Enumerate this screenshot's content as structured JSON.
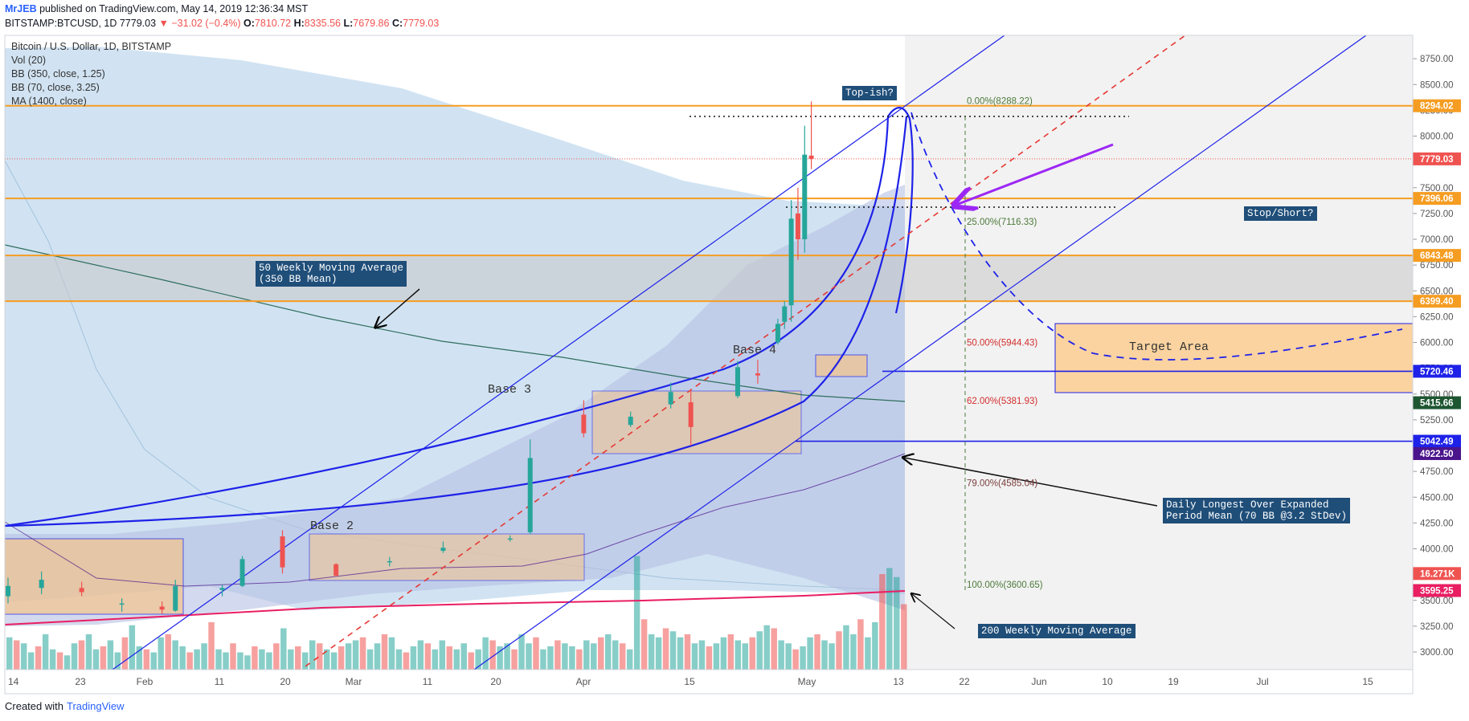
{
  "header": {
    "author": "MrJEB",
    "published_text": "published on TradingView.com, May 14, 2019 12:36:34 MST"
  },
  "symbol_bar": {
    "symbol": "BITSTAMP:BTCUSD, 1D",
    "last": "7779.03",
    "change": "▼ −31.02 (−0.4%)",
    "o_label": "O:",
    "o": "7810.72",
    "h_label": "H:",
    "h": "8335.56",
    "l_label": "L:",
    "l": "7679.86",
    "c_label": "C:",
    "c": "7779.03"
  },
  "legend": {
    "title": "Bitcoin / U.S. Dollar, 1D, BITSTAMP",
    "indicators": [
      "Vol (20)",
      "BB (350, close, 1.25)",
      "BB (70, close, 3.25)",
      "MA (1400, close)"
    ]
  },
  "annotations": {
    "top_ish": "Top-ish?",
    "stop_short": "Stop/Short?",
    "ma50": "50 Weekly Moving Average\n(350 BB Mean)",
    "base2": "Base 2",
    "base3": "Base 3",
    "base4": "Base 4",
    "target_area": "Target Area",
    "daily_longest": "Daily Longest Over Expanded\nPeriod Mean (70 BB @3.2 StDev)",
    "ma200": "200 Weekly Moving Average"
  },
  "fib_levels": [
    {
      "label": "0.00%(8288.22)",
      "price": 8288.22,
      "color": "#4c7a3a"
    },
    {
      "label": "25.00%(7116.33)",
      "price": 7116.33,
      "color": "#4c7a3a"
    },
    {
      "label": "50.00%(5944.43)",
      "price": 5944.43,
      "color": "#d32f2f"
    },
    {
      "label": "62.00%(5381.93)",
      "price": 5381.93,
      "color": "#d32f2f"
    },
    {
      "label": "79.00%(4585.04)",
      "price": 4585.04,
      "color": "#7b3f3f"
    },
    {
      "label": "100.00%(3600.65)",
      "price": 3600.65,
      "color": "#4c7a3a"
    }
  ],
  "price_tags": [
    {
      "value": "8294.02",
      "price": 8294.02,
      "color": "#f59d22"
    },
    {
      "value": "7779.03",
      "price": 7779.03,
      "color": "#ef5350"
    },
    {
      "value": "7396.06",
      "price": 7396.06,
      "color": "#f59d22"
    },
    {
      "value": "6843.48",
      "price": 6843.48,
      "color": "#f59d22"
    },
    {
      "value": "6399.40",
      "price": 6399.4,
      "color": "#f59d22"
    },
    {
      "value": "5720.46",
      "price": 5720.46,
      "color": "#1e22e8"
    },
    {
      "value": "5415.66",
      "price": 5415.66,
      "color": "#1e5631"
    },
    {
      "value": "5042.49",
      "price": 5042.49,
      "color": "#1e22e8"
    },
    {
      "value": "4922.50",
      "price": 4922.5,
      "color": "#4a148c"
    },
    {
      "value": "16.271K",
      "price": 3760,
      "color": "#ef5350"
    },
    {
      "value": "3595.25",
      "price": 3595.25,
      "color": "#e91e63"
    }
  ],
  "colors": {
    "up": "#26a69a",
    "down": "#ef5350",
    "orange": "#f59d22",
    "blue_line": "#1e22e8",
    "bb_fill": "#c9def0",
    "purple_arrow": "#9c27f5"
  },
  "chart_data": {
    "type": "candlestick",
    "title": "Bitcoin / U.S. Dollar, 1D, BITSTAMP",
    "xlabel": "",
    "ylabel": "",
    "ylim": [
      2700,
      8900
    ],
    "y_ticks": [
      3000,
      3250,
      3500,
      3750,
      4000,
      4250,
      4500,
      4750,
      5000,
      5250,
      5500,
      5750,
      6000,
      6250,
      6500,
      6750,
      7000,
      7250,
      7500,
      7750,
      8000,
      8250,
      8500,
      8750
    ],
    "x_tick_labels": [
      "14",
      "23",
      "Feb",
      "11",
      "20",
      "Mar",
      "11",
      "20",
      "Apr",
      "15",
      "May",
      "13",
      "22",
      "Jun",
      "10",
      "19",
      "Jul",
      "15"
    ],
    "grid": false,
    "candles": [
      {
        "date": "2019-01-14",
        "o": 3540,
        "h": 3720,
        "l": 3470,
        "c": 3640
      },
      {
        "date": "2019-01-19",
        "o": 3620,
        "h": 3780,
        "l": 3560,
        "c": 3700
      },
      {
        "date": "2019-01-25",
        "o": 3620,
        "h": 3680,
        "l": 3540,
        "c": 3580
      },
      {
        "date": "2019-01-31",
        "o": 3460,
        "h": 3520,
        "l": 3390,
        "c": 3470
      },
      {
        "date": "2019-02-06",
        "o": 3440,
        "h": 3490,
        "l": 3370,
        "c": 3410
      },
      {
        "date": "2019-02-08",
        "o": 3400,
        "h": 3700,
        "l": 3390,
        "c": 3640
      },
      {
        "date": "2019-02-15",
        "o": 3600,
        "h": 3650,
        "l": 3540,
        "c": 3620
      },
      {
        "date": "2019-02-18",
        "o": 3640,
        "h": 3930,
        "l": 3630,
        "c": 3900
      },
      {
        "date": "2019-02-24",
        "o": 4120,
        "h": 4180,
        "l": 3760,
        "c": 3820
      },
      {
        "date": "2019-03-04",
        "o": 3850,
        "h": 3860,
        "l": 3730,
        "c": 3740
      },
      {
        "date": "2019-03-12",
        "o": 3870,
        "h": 3920,
        "l": 3830,
        "c": 3880
      },
      {
        "date": "2019-03-20",
        "o": 3980,
        "h": 4070,
        "l": 3960,
        "c": 4010
      },
      {
        "date": "2019-03-30",
        "o": 4090,
        "h": 4130,
        "l": 4070,
        "c": 4100
      },
      {
        "date": "2019-04-02",
        "o": 4160,
        "h": 5060,
        "l": 4140,
        "c": 4880
      },
      {
        "date": "2019-04-10",
        "o": 5300,
        "h": 5440,
        "l": 5080,
        "c": 5120
      },
      {
        "date": "2019-04-17",
        "o": 5200,
        "h": 5330,
        "l": 5180,
        "c": 5280
      },
      {
        "date": "2019-04-23",
        "o": 5400,
        "h": 5610,
        "l": 5360,
        "c": 5520
      },
      {
        "date": "2019-04-26",
        "o": 5420,
        "h": 5550,
        "l": 5000,
        "c": 5180
      },
      {
        "date": "2019-05-03",
        "o": 5480,
        "h": 5820,
        "l": 5460,
        "c": 5760
      },
      {
        "date": "2019-05-06",
        "o": 5700,
        "h": 5830,
        "l": 5600,
        "c": 5680
      },
      {
        "date": "2019-05-09",
        "o": 6000,
        "h": 6230,
        "l": 5980,
        "c": 6180
      },
      {
        "date": "2019-05-10",
        "o": 6200,
        "h": 6400,
        "l": 6130,
        "c": 6350
      },
      {
        "date": "2019-05-11",
        "o": 6360,
        "h": 7380,
        "l": 6200,
        "c": 7200
      },
      {
        "date": "2019-05-12",
        "o": 7250,
        "h": 7500,
        "l": 6800,
        "c": 7000
      },
      {
        "date": "2019-05-13",
        "o": 7000,
        "h": 8100,
        "l": 6870,
        "c": 7820
      },
      {
        "date": "2019-05-14",
        "o": 7810.72,
        "h": 8335.56,
        "l": 7679.86,
        "c": 7779.03
      }
    ],
    "volume": {
      "last": "16.271K"
    },
    "horizontal_levels": [
      8294.02,
      7396.06,
      6843.48,
      6399.4,
      5720.46,
      5042.49
    ]
  }
}
